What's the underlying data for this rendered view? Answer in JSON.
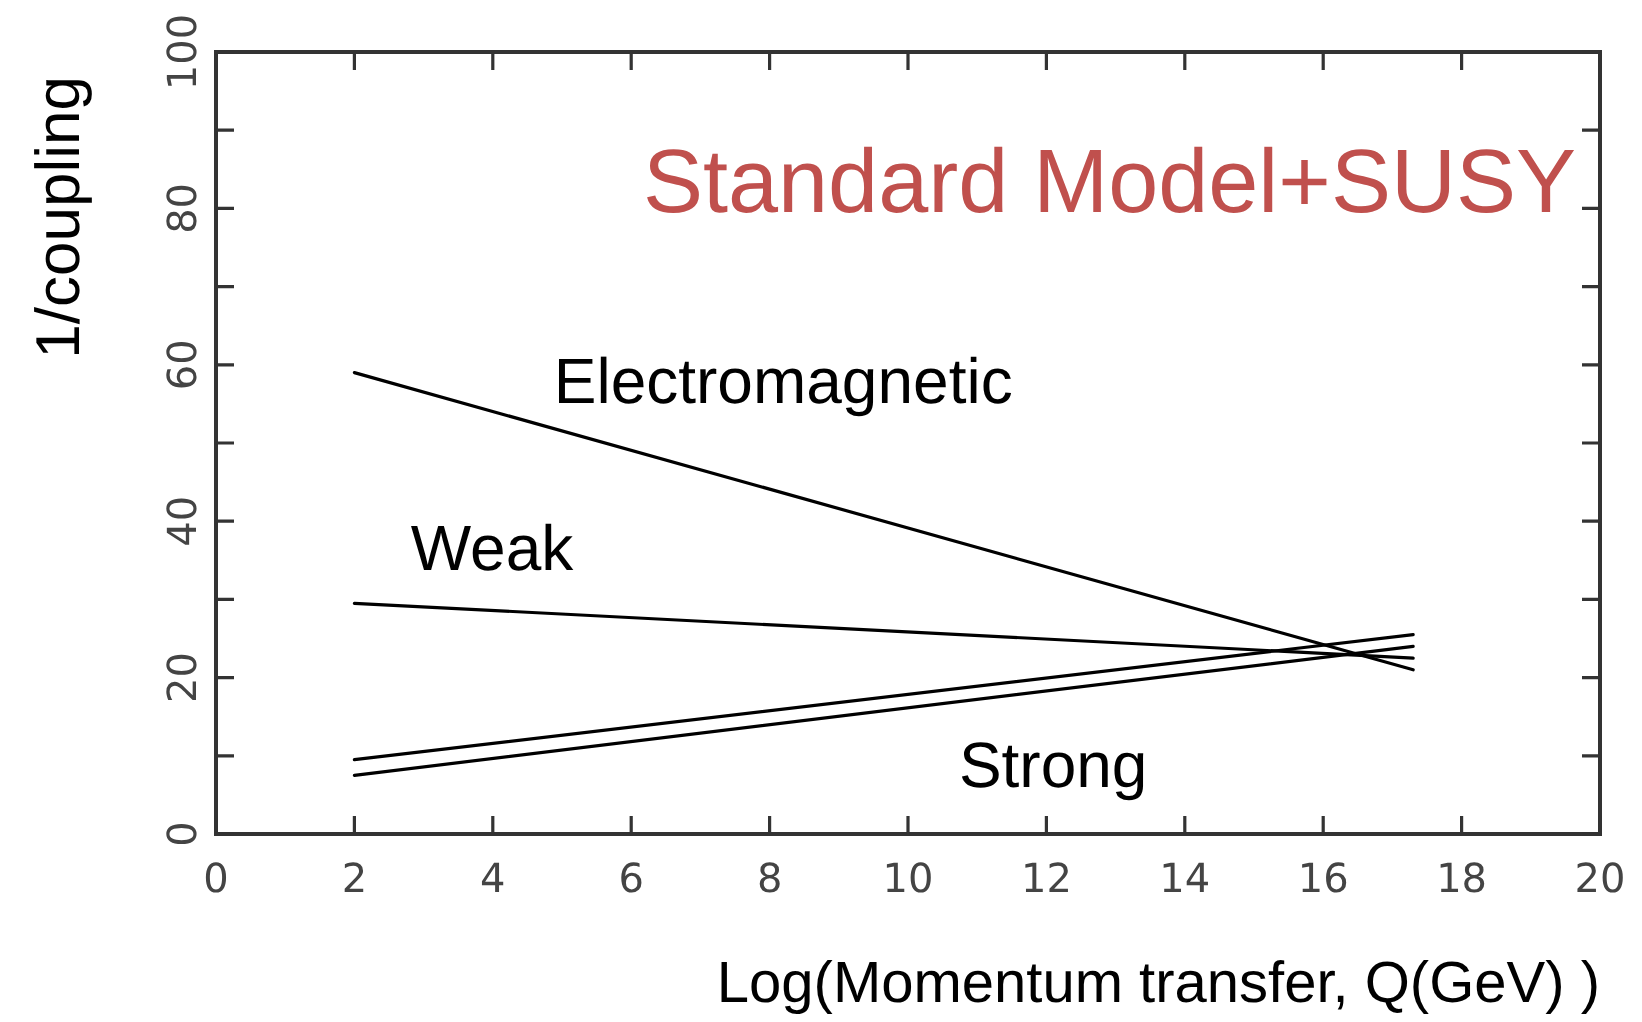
{
  "chart_data": {
    "type": "line",
    "title": "Standard Model+SUSY",
    "xlabel": "Log(Momentum transfer, Q(GeV) )",
    "ylabel": "1/coupling",
    "x": [
      2,
      17.3
    ],
    "series": [
      {
        "name": "Electromagnetic",
        "color": "#000000",
        "values": [
          59,
          21
        ]
      },
      {
        "name": "Weak",
        "color": "#000000",
        "values": [
          29.5,
          22.5
        ]
      },
      {
        "name": "Strong",
        "color": "#000000",
        "values": [
          9.5,
          25.5
        ]
      },
      {
        "color": "#000000",
        "values": [
          7.5,
          24
        ]
      }
    ],
    "xlim": [
      0,
      20
    ],
    "ylim": [
      0,
      100
    ],
    "xticks": [
      0,
      2,
      4,
      6,
      8,
      10,
      12,
      14,
      16,
      18,
      20
    ],
    "yticks": [
      0,
      {
        "value": 10,
        "label": null
      },
      20,
      {
        "value": 30,
        "label": null
      },
      40,
      {
        "value": 50,
        "label": null
      },
      60,
      {
        "value": 70,
        "label": null
      },
      80,
      {
        "value": 90,
        "label": null
      },
      100
    ],
    "grid": false,
    "legend": false
  }
}
